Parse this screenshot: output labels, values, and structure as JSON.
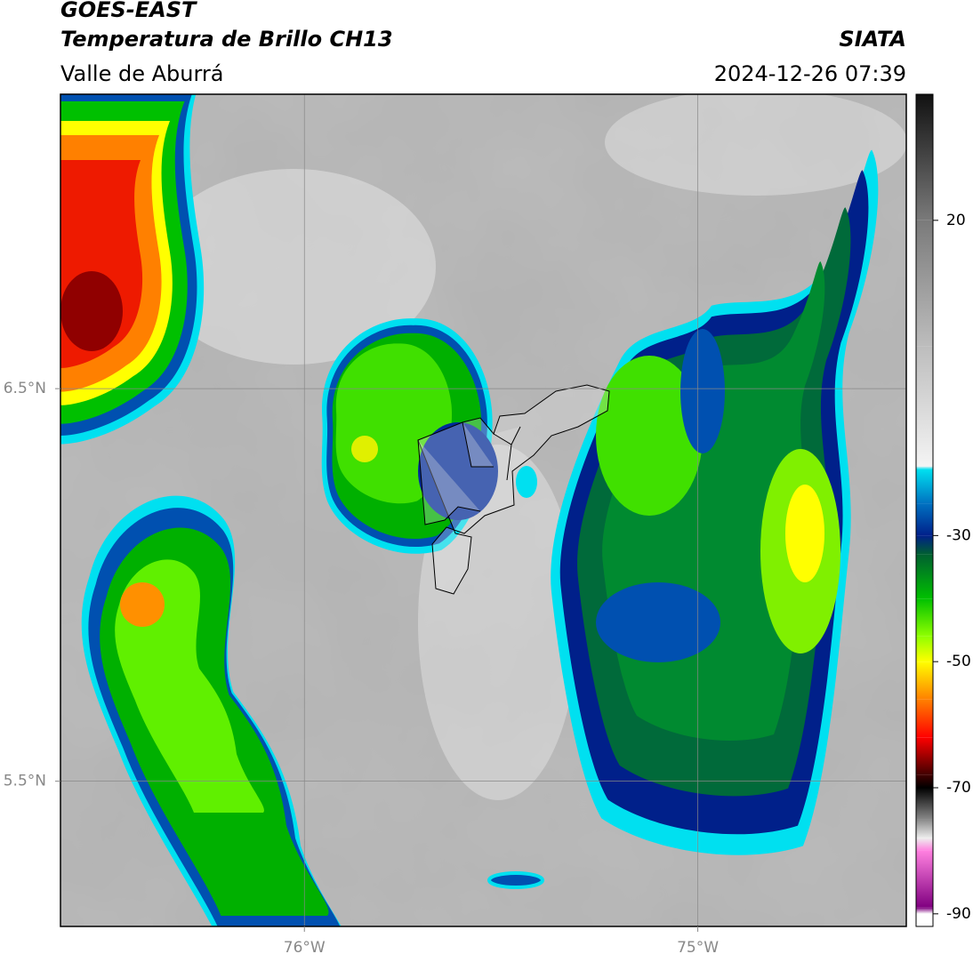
{
  "chart_data": {
    "type": "map",
    "title": "GOES-EAST",
    "subtitle": "Temperatura de Brillo CH13",
    "region": "Valle de Aburrá",
    "source": "SIATA",
    "datetime": "2024-12-26 07:39",
    "xlim": [
      -76.62,
      -74.47
    ],
    "ylim": [
      5.13,
      7.25
    ],
    "xticks": [
      {
        "value": -76,
        "label": "76°W"
      },
      {
        "value": -75,
        "label": "75°W"
      }
    ],
    "yticks": [
      {
        "value": 6.5,
        "label": "6.5°N"
      },
      {
        "value": 5.5,
        "label": "5.5°N"
      }
    ],
    "grid": true,
    "colorbar": {
      "lim": [
        -92,
        40
      ],
      "ticks": [
        20,
        -30,
        -50,
        -70,
        -90
      ],
      "stops": [
        {
          "value": 40,
          "color": "#111111"
        },
        {
          "value": 20,
          "color": "#7a7a7a"
        },
        {
          "value": 0,
          "color": "#bdbdbd"
        },
        {
          "value": -19,
          "color": "#f4f4f4"
        },
        {
          "value": -19.5,
          "color": "#00e0f0"
        },
        {
          "value": -25,
          "color": "#0070c0"
        },
        {
          "value": -30,
          "color": "#00208a"
        },
        {
          "value": -33,
          "color": "#006030"
        },
        {
          "value": -40,
          "color": "#00c000"
        },
        {
          "value": -46,
          "color": "#90ff00"
        },
        {
          "value": -50,
          "color": "#ffff00"
        },
        {
          "value": -56,
          "color": "#ff8000"
        },
        {
          "value": -62,
          "color": "#ff0000"
        },
        {
          "value": -68,
          "color": "#400000"
        },
        {
          "value": -70,
          "color": "#000000"
        },
        {
          "value": -75,
          "color": "#888888"
        },
        {
          "value": -78,
          "color": "#eeeeee"
        },
        {
          "value": -80,
          "color": "#ff80e0"
        },
        {
          "value": -89,
          "color": "#800080"
        },
        {
          "value": -90,
          "color": "#ffffff"
        }
      ]
    }
  }
}
